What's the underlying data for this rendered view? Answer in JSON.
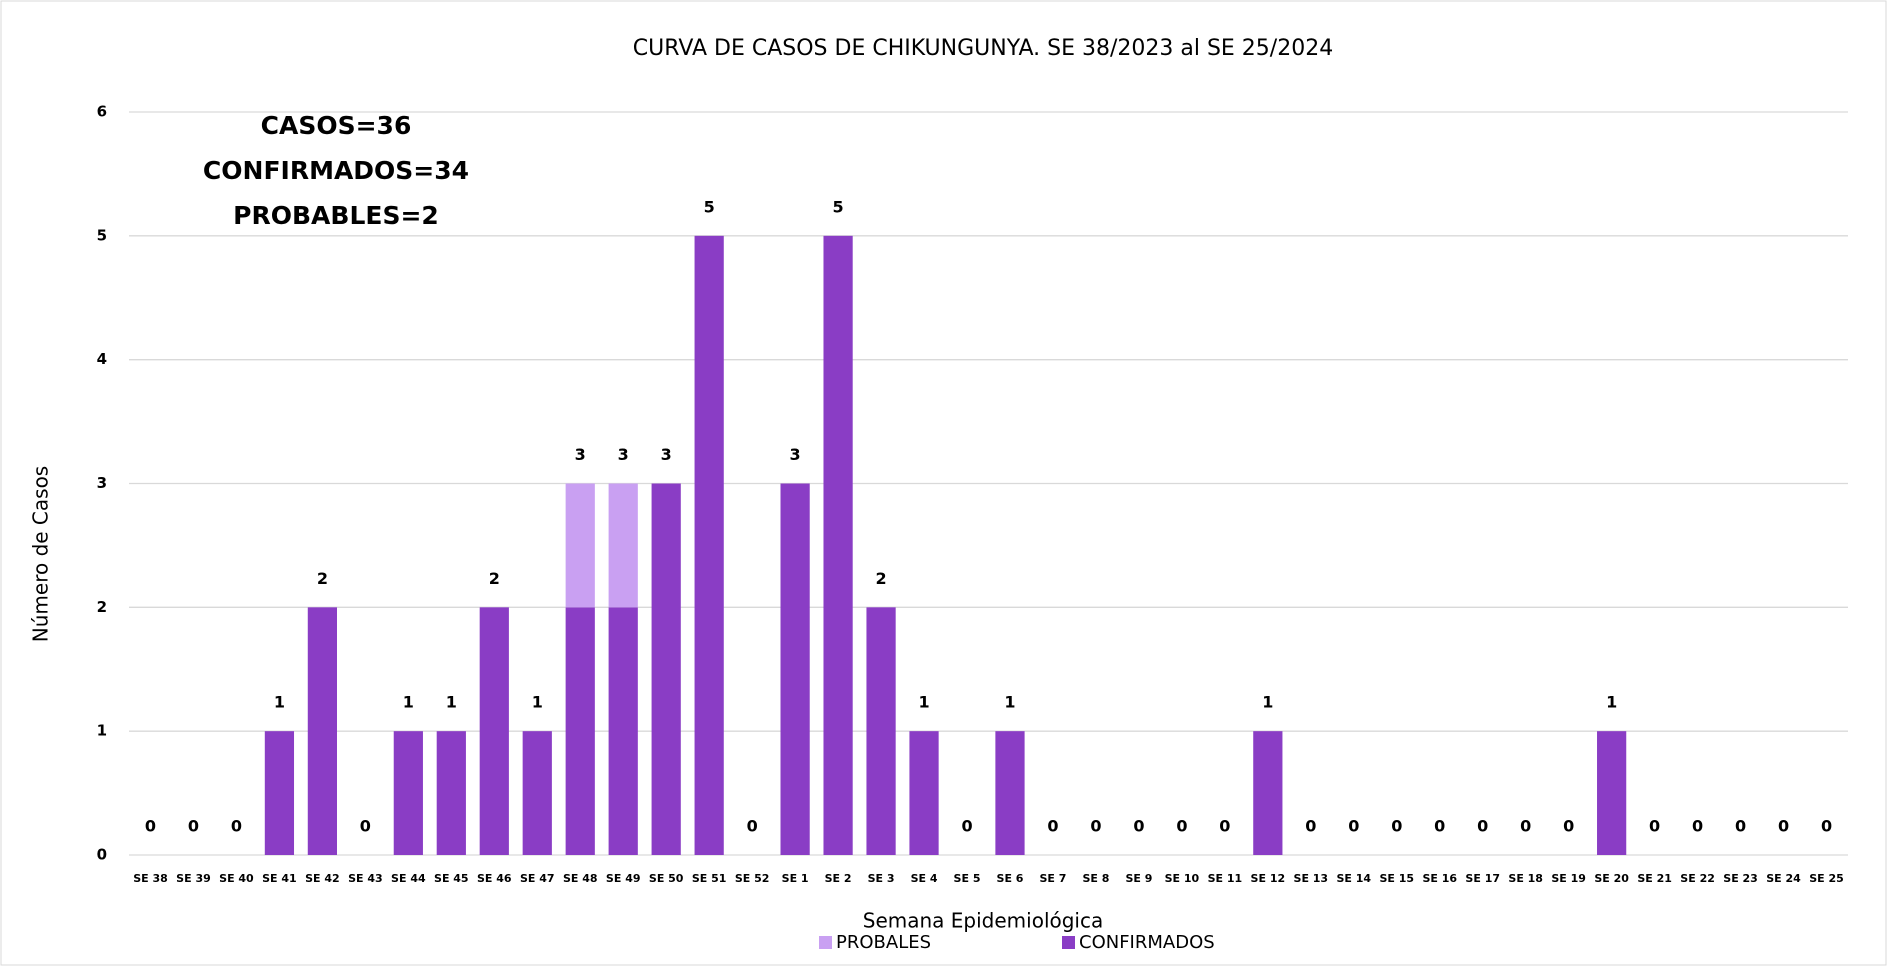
{
  "chart_data": {
    "type": "stacked_bar",
    "title": "CURVA DE CASOS DE CHIKUNGUNYA. SE 38/2023 al SE 25/2024",
    "x_label": "Semana Epidemiológica",
    "y_label": "Número de Casos",
    "annotations": [
      "CASOS=36",
      "CONFIRMADOS=34",
      "PROBABLES=2"
    ],
    "categories": [
      "SE 38",
      "SE 39",
      "SE 40",
      "SE 41",
      "SE 42",
      "SE 43",
      "SE 44",
      "SE 45",
      "SE 46",
      "SE 47",
      "SE 48",
      "SE 49",
      "SE 50",
      "SE 51",
      "SE 52",
      "SE 1",
      "SE 2",
      "SE 3",
      "SE 4",
      "SE 5",
      "SE 6",
      "SE 7",
      "SE 8",
      "SE 9",
      "SE 10",
      "SE 11",
      "SE 12",
      "SE 13",
      "SE 14",
      "SE 15",
      "SE 16",
      "SE 17",
      "SE 18",
      "SE 19",
      "SE 20",
      "SE 21",
      "SE 22",
      "SE 23",
      "SE 24",
      "SE 25"
    ],
    "series": [
      {
        "name": "PROBALES",
        "color": "#c9a0f2",
        "values": [
          0,
          0,
          0,
          0,
          0,
          0,
          0,
          0,
          0,
          0,
          1,
          1,
          0,
          0,
          0,
          0,
          0,
          0,
          0,
          0,
          0,
          0,
          0,
          0,
          0,
          0,
          0,
          0,
          0,
          0,
          0,
          0,
          0,
          0,
          0,
          0,
          0,
          0,
          0,
          0
        ]
      },
      {
        "name": "CONFIRMADOS",
        "color": "#8a3dc5",
        "values": [
          0,
          0,
          0,
          1,
          2,
          0,
          1,
          1,
          2,
          1,
          2,
          2,
          3,
          5,
          0,
          3,
          5,
          2,
          1,
          0,
          1,
          0,
          0,
          0,
          0,
          0,
          1,
          0,
          0,
          0,
          0,
          0,
          0,
          0,
          1,
          0,
          0,
          0,
          0,
          0
        ]
      }
    ],
    "totals": [
      0,
      0,
      0,
      1,
      2,
      0,
      1,
      1,
      2,
      1,
      3,
      3,
      3,
      5,
      0,
      3,
      5,
      2,
      1,
      0,
      1,
      0,
      0,
      0,
      0,
      0,
      1,
      0,
      0,
      0,
      0,
      0,
      0,
      0,
      1,
      0,
      0,
      0,
      0,
      0
    ],
    "ylim": [
      0,
      6
    ],
    "yticks": [
      0,
      1,
      2,
      3,
      4,
      5,
      6
    ],
    "grid": true
  }
}
